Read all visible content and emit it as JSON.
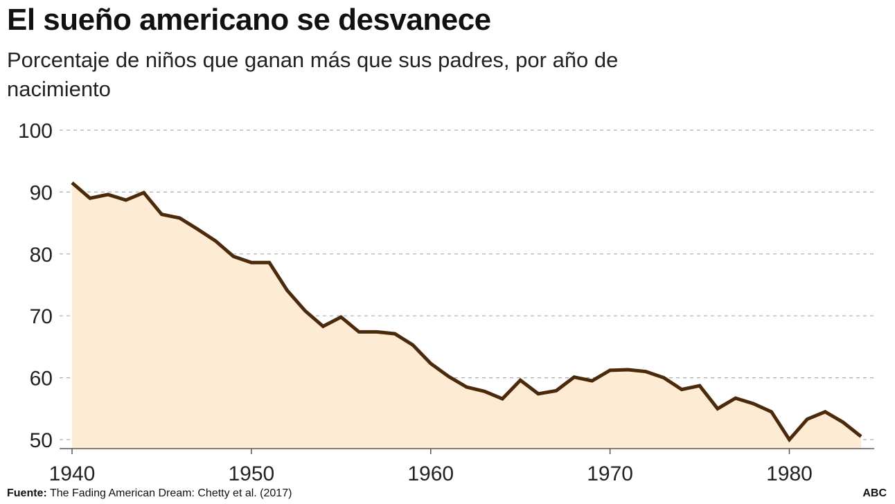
{
  "header": {
    "title": "El sueño americano se desvanece",
    "subtitle": "Porcentaje de niños que ganan más que sus padres, por año de nacimiento"
  },
  "footer": {
    "source_label": "Fuente:",
    "source_text": "The Fading American Dream: Chetty et al. (2017)",
    "brand": "ABC"
  },
  "colors": {
    "line": "#4a2a0a",
    "area": "#fdebd3",
    "grid": "#aaaaaa"
  },
  "chart_data": {
    "type": "area",
    "title": "El sueño americano se desvanece",
    "subtitle": "Porcentaje de niños que ganan más que sus padres, por año de nacimiento",
    "xlabel": "",
    "ylabel": "",
    "xlim": [
      1940,
      1984
    ],
    "ylim": [
      50,
      100
    ],
    "yticks": [
      100,
      90,
      80,
      70,
      60,
      50
    ],
    "xticks": [
      1940,
      1950,
      1960,
      1970,
      1980
    ],
    "grid": true,
    "x": [
      1940,
      1941,
      1942,
      1943,
      1944,
      1945,
      1946,
      1947,
      1948,
      1949,
      1950,
      1951,
      1952,
      1953,
      1954,
      1955,
      1956,
      1957,
      1958,
      1959,
      1960,
      1961,
      1962,
      1963,
      1964,
      1965,
      1966,
      1967,
      1968,
      1969,
      1970,
      1971,
      1972,
      1973,
      1974,
      1975,
      1976,
      1977,
      1978,
      1979,
      1980,
      1981,
      1982,
      1983,
      1984
    ],
    "series": [
      {
        "values": [
          91.5,
          89.0,
          89.6,
          88.7,
          89.9,
          86.4,
          85.8,
          84.0,
          82.1,
          79.6,
          78.6,
          78.6,
          74.1,
          70.8,
          68.3,
          69.8,
          67.4,
          67.4,
          67.1,
          65.3,
          62.3,
          60.2,
          58.5,
          57.8,
          56.6,
          59.6,
          57.4,
          57.9,
          60.1,
          59.5,
          61.2,
          61.3,
          61.0,
          60.0,
          58.1,
          58.7,
          55.0,
          56.7,
          55.8,
          54.5,
          50.0,
          53.3,
          54.5,
          52.8,
          50.5
        ]
      }
    ]
  }
}
